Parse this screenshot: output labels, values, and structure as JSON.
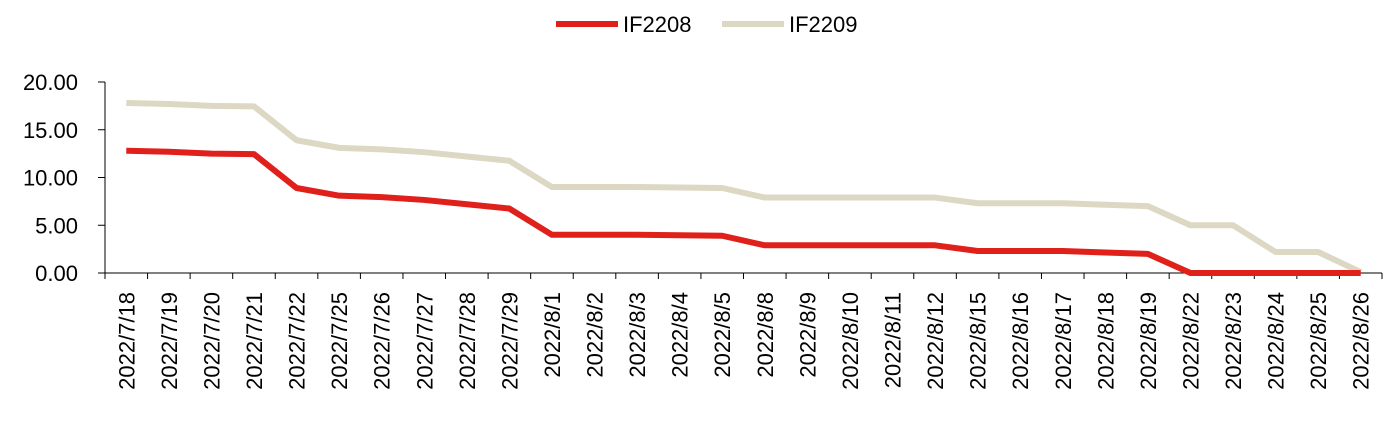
{
  "chart_data": {
    "type": "line",
    "title": "",
    "xlabel": "",
    "ylabel": "",
    "ylim": [
      0,
      20
    ],
    "yticks": [
      "0.00",
      "5.00",
      "10.00",
      "15.00",
      "20.00"
    ],
    "grid": false,
    "legend_position": "top-center",
    "categories": [
      "2022/7/18",
      "2022/7/19",
      "2022/7/20",
      "2022/7/21",
      "2022/7/22",
      "2022/7/25",
      "2022/7/26",
      "2022/7/27",
      "2022/7/28",
      "2022/7/29",
      "2022/8/1",
      "2022/8/2",
      "2022/8/3",
      "2022/8/4",
      "2022/8/5",
      "2022/8/8",
      "2022/8/9",
      "2022/8/10",
      "2022/8/11",
      "2022/8/12",
      "2022/8/15",
      "2022/8/16",
      "2022/8/17",
      "2022/8/18",
      "2022/8/19",
      "2022/8/22",
      "2022/8/23",
      "2022/8/24",
      "2022/8/25",
      "2022/8/26"
    ],
    "series": [
      {
        "name": "IF2208",
        "color": "#e0201b",
        "values": [
          12.8,
          12.7,
          12.5,
          12.45,
          8.9,
          8.1,
          7.95,
          7.65,
          7.2,
          6.75,
          4.0,
          4.0,
          4.0,
          3.95,
          3.9,
          2.9,
          2.9,
          2.9,
          2.9,
          2.9,
          2.3,
          2.3,
          2.3,
          2.15,
          2.0,
          0.0,
          0.0,
          0.0,
          0.0,
          0.0
        ]
      },
      {
        "name": "IF2209",
        "color": "#ddd8c4",
        "values": [
          17.8,
          17.7,
          17.5,
          17.45,
          13.9,
          13.1,
          12.95,
          12.65,
          12.2,
          11.75,
          9.0,
          9.0,
          9.0,
          8.95,
          8.9,
          7.9,
          7.9,
          7.9,
          7.9,
          7.9,
          7.3,
          7.3,
          7.3,
          7.15,
          7.0,
          5.0,
          5.0,
          2.2,
          2.2,
          0.1
        ]
      }
    ]
  }
}
